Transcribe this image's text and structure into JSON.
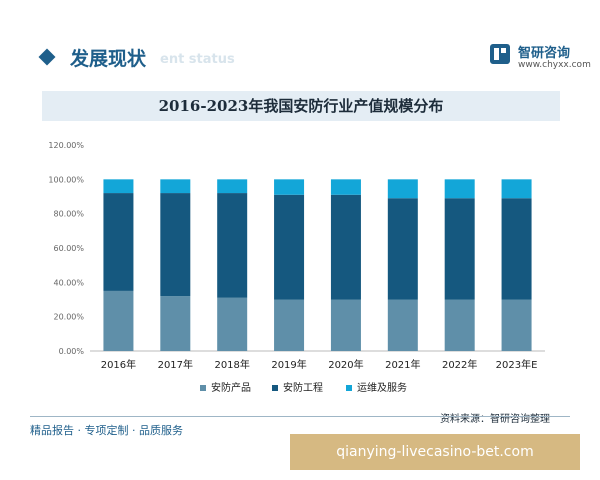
{
  "header": {
    "title": "发展现状",
    "watermark": "ent status"
  },
  "brand": {
    "name": "智研咨询",
    "url": "www.chyxx.com"
  },
  "footer": {
    "left": "精品报告 · 专项定制 · 品质服务",
    "source": "资料来源：智研咨询整理"
  },
  "banner": {
    "text": "qianying-livecasino-bet.com"
  },
  "colors": {
    "accent": "#1f5f8b",
    "title_bg": "#e4edf4",
    "banner_bg": "#d6b982"
  },
  "chart_data": {
    "type": "bar",
    "stacked": true,
    "title": "2016-2023年我国安防行业产值规模分布",
    "categories": [
      "2016年",
      "2017年",
      "2018年",
      "2019年",
      "2020年",
      "2021年",
      "2022年",
      "2023年E"
    ],
    "series": [
      {
        "name": "安防产品",
        "color": "#5f8fa9",
        "values": [
          35,
          32,
          31,
          30,
          30,
          30,
          30,
          30
        ]
      },
      {
        "name": "安防工程",
        "color": "#15587f",
        "values": [
          57,
          60,
          61,
          61,
          61,
          59,
          59,
          59
        ]
      },
      {
        "name": "运维及服务",
        "color": "#13a6d8",
        "values": [
          8,
          8,
          8,
          9,
          9,
          11,
          11,
          11
        ]
      }
    ],
    "ylim": [
      0,
      120
    ],
    "yticks": [
      "0.00%",
      "20.00%",
      "40.00%",
      "60.00%",
      "80.00%",
      "100.00%",
      "120.00%"
    ],
    "grid": false,
    "legend": "bottom"
  }
}
